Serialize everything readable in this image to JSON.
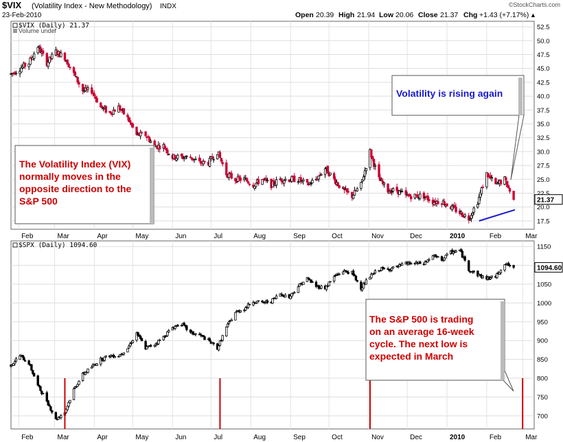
{
  "header": {
    "symbol": "$VIX",
    "name": "(Volatility Index - New Methodology)",
    "exchange": "INDX",
    "date": "23-Feb-2010",
    "watermark": "©StockCharts.com",
    "quote": {
      "open_label": "Open",
      "open": "20.39",
      "high_label": "High",
      "high": "21.94",
      "low_label": "Low",
      "low": "20.06",
      "close_label": "Close",
      "close": "21.37",
      "chg_label": "Chg",
      "chg": "+1.43 (+7.17%)",
      "chg_arrow": "▲"
    }
  },
  "colors": {
    "up_candle": "#000000",
    "down_candle": "#cc0033",
    "trendline": "#1a1acc",
    "cycle_line": "#cc0000",
    "vix_callout_text": "#1a1acc",
    "callout_text": "#cc0000"
  },
  "chart_data": [
    {
      "type": "candlestick",
      "panel": "upper",
      "legend": "$VIX (Daily) 21.37",
      "sub_legend": "Volume undef",
      "last_value_tag": "21.37",
      "y_ticks": [
        "17.5",
        "20.0",
        "22.5",
        "25.0",
        "27.5",
        "30.0",
        "32.5",
        "35.0",
        "37.5",
        "40.0",
        "42.5",
        "45.0",
        "47.5",
        "50.0",
        "52.5"
      ],
      "ylim": [
        16,
        53.5
      ],
      "x_labels": [
        "Feb",
        "Mar",
        "Apr",
        "May",
        "Jun",
        "Jul",
        "Aug",
        "Sep",
        "Oct",
        "Nov",
        "Dec",
        "2010",
        "Feb",
        "Mar"
      ],
      "x_range": [
        "2009-01-26",
        "2010-03-10"
      ],
      "close_path": [
        [
          "2009-01-26",
          44
        ],
        [
          "2009-02-02",
          45
        ],
        [
          "2009-02-09",
          46
        ],
        [
          "2009-02-16",
          49
        ],
        [
          "2009-02-23",
          46
        ],
        [
          "2009-03-02",
          48
        ],
        [
          "2009-03-09",
          47
        ],
        [
          "2009-03-16",
          44
        ],
        [
          "2009-03-23",
          41
        ],
        [
          "2009-03-30",
          41
        ],
        [
          "2009-04-06",
          38
        ],
        [
          "2009-04-13",
          37
        ],
        [
          "2009-04-20",
          38
        ],
        [
          "2009-04-27",
          36
        ],
        [
          "2009-05-04",
          33
        ],
        [
          "2009-05-11",
          33
        ],
        [
          "2009-05-18",
          31
        ],
        [
          "2009-05-25",
          31
        ],
        [
          "2009-06-01",
          29
        ],
        [
          "2009-06-08",
          29
        ],
        [
          "2009-06-15",
          29
        ],
        [
          "2009-06-22",
          28
        ],
        [
          "2009-06-29",
          28
        ],
        [
          "2009-07-06",
          30
        ],
        [
          "2009-07-13",
          26
        ],
        [
          "2009-07-20",
          25
        ],
        [
          "2009-07-27",
          25
        ],
        [
          "2009-08-03",
          24
        ],
        [
          "2009-08-10",
          25
        ],
        [
          "2009-08-17",
          24
        ],
        [
          "2009-08-24",
          25
        ],
        [
          "2009-08-31",
          25
        ],
        [
          "2009-09-07",
          25
        ],
        [
          "2009-09-14",
          24
        ],
        [
          "2009-09-21",
          25
        ],
        [
          "2009-09-28",
          27
        ],
        [
          "2009-10-05",
          25
        ],
        [
          "2009-10-12",
          23
        ],
        [
          "2009-10-19",
          22
        ],
        [
          "2009-10-26",
          24
        ],
        [
          "2009-11-02",
          30
        ],
        [
          "2009-11-09",
          25
        ],
        [
          "2009-11-16",
          23
        ],
        [
          "2009-11-23",
          23
        ],
        [
          "2009-11-30",
          22
        ],
        [
          "2009-12-07",
          22
        ],
        [
          "2009-12-14",
          22
        ],
        [
          "2009-12-21",
          21
        ],
        [
          "2009-12-28",
          21
        ],
        [
          "2010-01-04",
          20
        ],
        [
          "2010-01-11",
          19
        ],
        [
          "2010-01-18",
          18
        ],
        [
          "2010-01-25",
          21
        ],
        [
          "2010-02-01",
          26
        ],
        [
          "2010-02-08",
          24
        ],
        [
          "2010-02-15",
          25
        ],
        [
          "2010-02-22",
          21.37
        ]
      ],
      "trendline": [
        [
          "2010-01-26",
          17.5
        ],
        [
          "2010-02-23",
          19.5
        ]
      ],
      "annotations": [
        {
          "name": "vix-rising-callout",
          "text": "Volatility is rising again"
        },
        {
          "name": "vix-inverse-callout",
          "text": "The Volatility Index (VIX) normally moves in the opposite direction to the S&P 500"
        }
      ]
    },
    {
      "type": "candlestick",
      "panel": "lower",
      "legend": "$SPX (Daily) 1094.60",
      "last_value_tag": "1094.60",
      "y_ticks": [
        "700",
        "750",
        "800",
        "850",
        "900",
        "950",
        "1000",
        "1050",
        "1100",
        "1150"
      ],
      "ylim": [
        665,
        1165
      ],
      "x_labels": [
        "Feb",
        "Mar",
        "Apr",
        "May",
        "Jun",
        "Jul",
        "Aug",
        "Sep",
        "Oct",
        "Nov",
        "Dec",
        "2010",
        "Feb",
        "Mar"
      ],
      "x_range": [
        "2009-01-26",
        "2010-03-10"
      ],
      "close_path": [
        [
          "2009-01-26",
          835
        ],
        [
          "2009-02-02",
          860
        ],
        [
          "2009-02-09",
          840
        ],
        [
          "2009-02-16",
          780
        ],
        [
          "2009-02-23",
          740
        ],
        [
          "2009-03-02",
          690
        ],
        [
          "2009-03-09",
          710
        ],
        [
          "2009-03-16",
          770
        ],
        [
          "2009-03-23",
          810
        ],
        [
          "2009-03-30",
          830
        ],
        [
          "2009-04-06",
          850
        ],
        [
          "2009-04-13",
          860
        ],
        [
          "2009-04-20",
          860
        ],
        [
          "2009-04-27",
          880
        ],
        [
          "2009-05-04",
          920
        ],
        [
          "2009-05-11",
          880
        ],
        [
          "2009-05-18",
          890
        ],
        [
          "2009-05-25",
          910
        ],
        [
          "2009-06-01",
          935
        ],
        [
          "2009-06-08",
          945
        ],
        [
          "2009-06-15",
          920
        ],
        [
          "2009-06-22",
          915
        ],
        [
          "2009-06-29",
          900
        ],
        [
          "2009-07-06",
          880
        ],
        [
          "2009-07-13",
          935
        ],
        [
          "2009-07-20",
          975
        ],
        [
          "2009-07-27",
          985
        ],
        [
          "2009-08-03",
          1005
        ],
        [
          "2009-08-10",
          1000
        ],
        [
          "2009-08-17",
          1005
        ],
        [
          "2009-08-24",
          1025
        ],
        [
          "2009-08-31",
          1015
        ],
        [
          "2009-09-07",
          1045
        ],
        [
          "2009-09-14",
          1065
        ],
        [
          "2009-09-21",
          1045
        ],
        [
          "2009-09-28",
          1040
        ],
        [
          "2009-10-05",
          1070
        ],
        [
          "2009-10-12",
          1085
        ],
        [
          "2009-10-19",
          1080
        ],
        [
          "2009-10-26",
          1040
        ],
        [
          "2009-11-02",
          1070
        ],
        [
          "2009-11-09",
          1090
        ],
        [
          "2009-11-16",
          1090
        ],
        [
          "2009-11-23",
          1095
        ],
        [
          "2009-11-30",
          1105
        ],
        [
          "2009-12-07",
          1105
        ],
        [
          "2009-12-14",
          1105
        ],
        [
          "2009-12-21",
          1125
        ],
        [
          "2009-12-28",
          1115
        ],
        [
          "2010-01-04",
          1135
        ],
        [
          "2010-01-11",
          1140
        ],
        [
          "2010-01-18",
          1090
        ],
        [
          "2010-01-25",
          1075
        ],
        [
          "2010-02-01",
          1065
        ],
        [
          "2010-02-08",
          1070
        ],
        [
          "2010-02-15",
          1105
        ],
        [
          "2010-02-22",
          1094.6
        ]
      ],
      "cycle_lows": [
        "2009-03-09",
        "2009-07-08",
        "2009-11-02",
        "2010-03-01"
      ],
      "annotations": [
        {
          "name": "spx-cycle-callout",
          "text": "The S&P 500 is trading on an average 16-week cycle.  The next low is expected in March"
        }
      ]
    }
  ]
}
